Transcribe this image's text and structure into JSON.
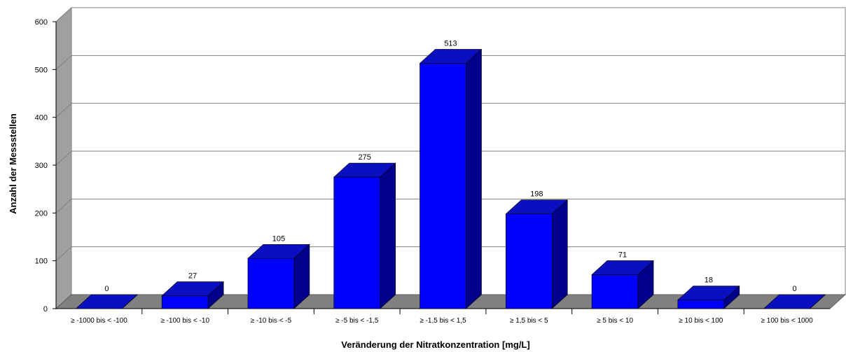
{
  "chart_data": {
    "type": "bar",
    "title": "",
    "xlabel": "Veränderung der Nitratkonzentration [mg/L]",
    "ylabel": "Anzahl der Messstellen",
    "ylim": [
      0,
      600
    ],
    "yticks": [
      "0",
      "100",
      "200",
      "300",
      "400",
      "500",
      "600"
    ],
    "grid": true,
    "legend": "none",
    "categories": [
      "≥ -1000 bis < -100",
      "≥ -100 bis < -10",
      "≥ -10 bis < -5",
      "≥ -5 bis < -1,5",
      "≥ -1,5 bis < 1,5",
      "≥ 1,5 bis < 5",
      "≥ 5 bis < 10",
      "≥ 10 bis < 100",
      "≥ 100 bis < 1000"
    ],
    "values": [
      0,
      27,
      105,
      275,
      513,
      198,
      71,
      18,
      0
    ],
    "value_labels": [
      "0",
      "27",
      "105",
      "275",
      "513",
      "198",
      "71",
      "18",
      "0"
    ],
    "colors": {
      "bar_front": "#0000FF",
      "bar_side": "#00008B",
      "bar_top": "#0A10C0",
      "back_wall": "#FFFFFF",
      "side_wall": "#A0A0A0",
      "floor": "#808080",
      "grid": "#808080"
    }
  }
}
